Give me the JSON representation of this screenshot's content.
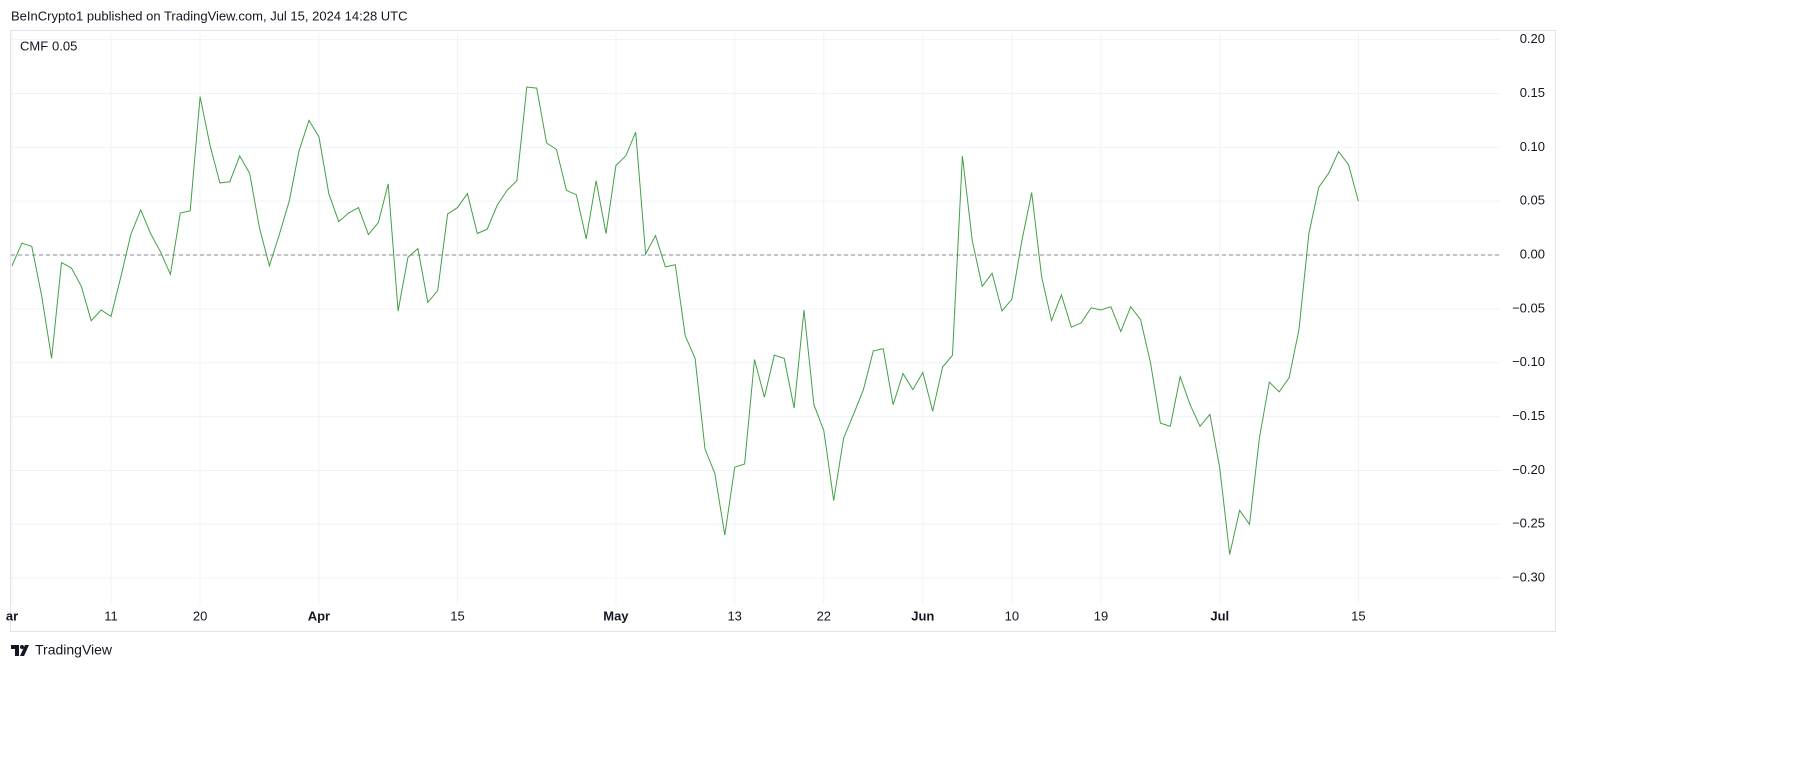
{
  "header": {
    "text": "BeInCrypto1 published on TradingView.com, Jul 15, 2024 14:28 UTC"
  },
  "footer": {
    "brand": "TradingView"
  },
  "chart_data": {
    "type": "line",
    "categories": [
      "ar",
      null,
      null,
      null,
      null,
      null,
      null,
      null,
      null,
      null,
      "11",
      null,
      null,
      null,
      null,
      null,
      null,
      null,
      null,
      "20",
      null,
      null,
      null,
      null,
      null,
      null,
      null,
      null,
      null,
      null,
      null,
      "Apr",
      null,
      null,
      null,
      null,
      null,
      null,
      null,
      null,
      null,
      null,
      null,
      null,
      null,
      "15",
      null,
      null,
      null,
      null,
      null,
      null,
      null,
      null,
      null,
      null,
      null,
      null,
      null,
      null,
      null,
      "May",
      null,
      null,
      null,
      null,
      null,
      null,
      null,
      null,
      null,
      null,
      null,
      "13",
      null,
      null,
      null,
      null,
      null,
      null,
      null,
      null,
      "22",
      null,
      null,
      null,
      null,
      null,
      null,
      null,
      null,
      null,
      "Jun",
      null,
      null,
      null,
      null,
      null,
      null,
      null,
      null,
      "10",
      null,
      null,
      null,
      null,
      null,
      null,
      null,
      null,
      "19",
      null,
      null,
      null,
      null,
      null,
      null,
      null,
      null,
      null,
      null,
      null,
      "Jul",
      null,
      null,
      null,
      null,
      null,
      null,
      null,
      null,
      null,
      null,
      null,
      null,
      null,
      "15"
    ],
    "series": [
      {
        "name": "CMF",
        "color": "#43a047",
        "values": [
          -0.01,
          0.011,
          0.008,
          -0.038,
          -0.096,
          -0.007,
          -0.012,
          -0.029,
          -0.061,
          -0.051,
          -0.057,
          -0.02,
          0.019,
          0.042,
          0.02,
          0.003,
          -0.018,
          0.039,
          0.041,
          0.147,
          0.102,
          0.067,
          0.068,
          0.092,
          0.076,
          0.025,
          -0.01,
          0.019,
          0.05,
          0.097,
          0.125,
          0.11,
          0.057,
          0.031,
          0.039,
          0.044,
          0.019,
          0.03,
          0.066,
          -0.052,
          -0.002,
          0.006,
          -0.044,
          -0.033,
          0.038,
          0.044,
          0.057,
          0.02,
          0.024,
          0.046,
          0.06,
          0.069,
          0.156,
          0.155,
          0.104,
          0.098,
          0.06,
          0.056,
          0.015,
          0.069,
          0.02,
          0.083,
          0.092,
          0.114,
          0.001,
          0.018,
          -0.011,
          -0.009,
          -0.075,
          -0.096,
          -0.18,
          -0.203,
          -0.26,
          -0.197,
          -0.194,
          -0.097,
          -0.132,
          -0.093,
          -0.096,
          -0.142,
          -0.051,
          -0.139,
          -0.163,
          -0.228,
          -0.17,
          -0.148,
          -0.125,
          -0.089,
          -0.087,
          -0.139,
          -0.11,
          -0.125,
          -0.109,
          -0.145,
          -0.104,
          -0.093,
          0.092,
          0.013,
          -0.029,
          -0.017,
          -0.052,
          -0.041,
          0.013,
          0.058,
          -0.02,
          -0.061,
          -0.037,
          -0.067,
          -0.063,
          -0.049,
          -0.051,
          -0.048,
          -0.071,
          -0.048,
          -0.06,
          -0.1,
          -0.156,
          -0.159,
          -0.113,
          -0.139,
          -0.159,
          -0.148,
          -0.198,
          -0.278,
          -0.237,
          -0.25,
          -0.17,
          -0.118,
          -0.127,
          -0.114,
          -0.069,
          0.02,
          0.063,
          0.076,
          0.096,
          0.084,
          0.05
        ]
      }
    ],
    "ylim": [
      -0.324,
      0.208
    ],
    "yticks": [
      {
        "value": 0.2,
        "label": "0.20"
      },
      {
        "value": 0.15,
        "label": "0.15"
      },
      {
        "value": 0.1,
        "label": "0.10"
      },
      {
        "value": 0.05,
        "label": "0.05"
      },
      {
        "value": 0,
        "label": "0.00"
      },
      {
        "value": -0.05,
        "label": "−0.05"
      },
      {
        "value": -0.1,
        "label": "−0.10"
      },
      {
        "value": -0.15,
        "label": "−0.15"
      },
      {
        "value": -0.2,
        "label": "−0.20"
      },
      {
        "value": -0.25,
        "label": "−0.25"
      },
      {
        "value": -0.3,
        "label": "−0.30"
      }
    ],
    "grid": true
  }
}
